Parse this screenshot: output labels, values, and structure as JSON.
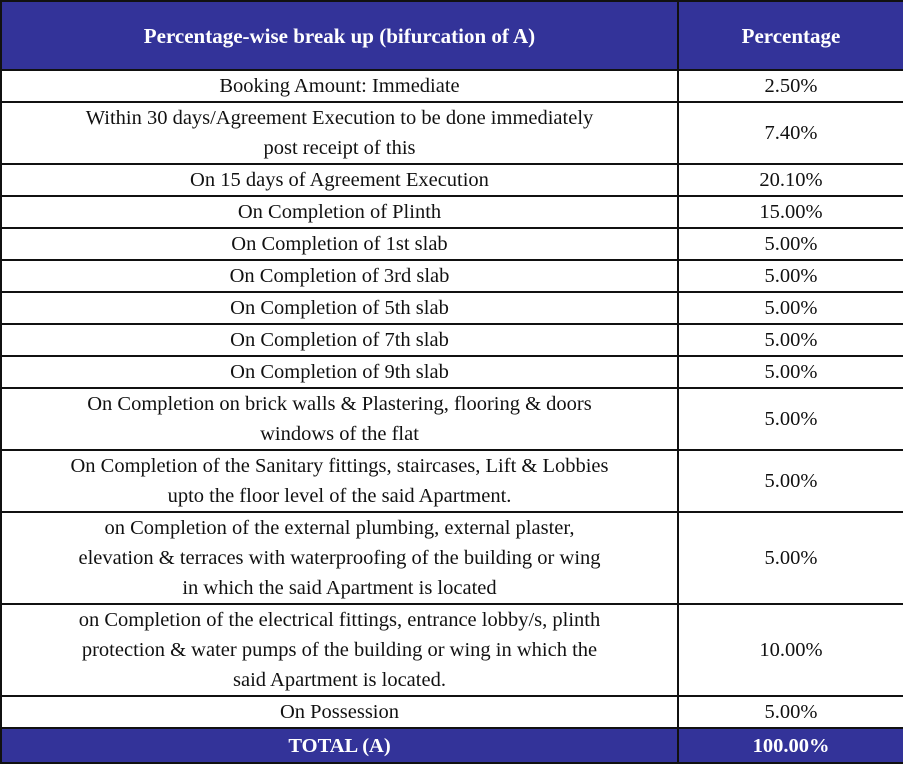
{
  "header": {
    "col1": "Percentage-wise break up (bifurcation of A)",
    "col2": "Percentage"
  },
  "rows": [
    {
      "label": "Booking Amount: Immediate",
      "pct": "2.50%"
    },
    {
      "label": "Within 30 days/Agreement Execution to be done immediately\npost receipt of this",
      "pct": "7.40%"
    },
    {
      "label": "On 15 days of Agreement Execution",
      "pct": "20.10%"
    },
    {
      "label": "On Completion of Plinth",
      "pct": "15.00%"
    },
    {
      "label": "On Completion of 1st slab",
      "pct": "5.00%"
    },
    {
      "label": "On Completion of 3rd slab",
      "pct": "5.00%"
    },
    {
      "label": "On Completion of 5th slab",
      "pct": "5.00%"
    },
    {
      "label": "On Completion of 7th slab",
      "pct": "5.00%"
    },
    {
      "label": "On Completion of 9th slab",
      "pct": "5.00%"
    },
    {
      "label": "On Completion on brick walls & Plastering, flooring & doors\nwindows of the flat",
      "pct": "5.00%"
    },
    {
      "label": "On Completion of the Sanitary fittings, staircases, Lift & Lobbies\nupto the floor level of the said Apartment.",
      "pct": "5.00%"
    },
    {
      "label": "on Completion of the external plumbing,  external plaster,\nelevation & terraces with waterproofing  of the building or wing\nin which the said Apartment is located",
      "pct": "5.00%"
    },
    {
      "label": "on Completion of the electrical fittings, entrance lobby/s, plinth\nprotection & water pumps of the building or wing in which the\nsaid Apartment is located.",
      "pct": "10.00%"
    },
    {
      "label": "On Possession",
      "pct": "5.00%"
    }
  ],
  "total": {
    "label": "TOTAL (A)",
    "pct": "100.00%"
  },
  "colors": {
    "header_bg": "#333399"
  }
}
